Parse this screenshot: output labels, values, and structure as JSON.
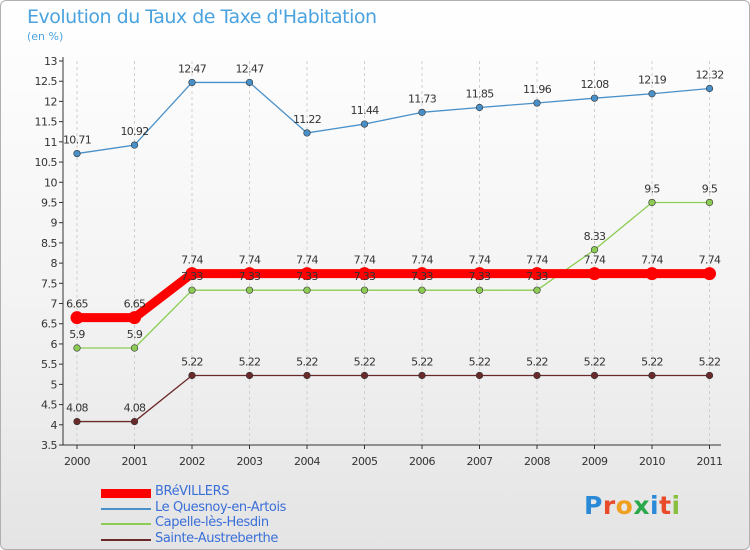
{
  "chart_data": {
    "type": "line",
    "title": "Evolution du Taux de Taxe d'Habitation",
    "subtitle": "(en %)",
    "xlabel": "",
    "ylabel": "",
    "x": [
      "2000",
      "2001",
      "2002",
      "2003",
      "2004",
      "2005",
      "2006",
      "2007",
      "2008",
      "2009",
      "2010",
      "2011"
    ],
    "ylim": [
      3.5,
      13
    ],
    "y_ticks": [
      "3.5",
      "4",
      "4.5",
      "5",
      "5.5",
      "6",
      "6.5",
      "7",
      "7.5",
      "8",
      "8.5",
      "9",
      "9.5",
      "10",
      "10.5",
      "11",
      "11.5",
      "12",
      "12.5",
      "13"
    ],
    "grid": "vertical dashed",
    "legend_position": "bottom-left",
    "series": [
      {
        "name": "BRéVILLERS",
        "color": "#ff0000",
        "values": [
          6.65,
          6.65,
          7.74,
          7.74,
          7.74,
          7.74,
          7.74,
          7.74,
          7.74,
          7.74,
          7.74,
          7.74
        ],
        "labels": [
          "6.65",
          "6.65",
          "7.74",
          "7.74",
          "7.74",
          "7.74",
          "7.74",
          "7.74",
          "7.74",
          "7.74",
          "7.74",
          "7.74"
        ]
      },
      {
        "name": "Le Quesnoy-en-Artois",
        "color": "#4a90c8",
        "values": [
          10.71,
          10.92,
          12.47,
          12.47,
          11.22,
          11.44,
          11.73,
          11.85,
          11.96,
          12.08,
          12.19,
          12.32
        ],
        "labels": [
          "10.71",
          "10.92",
          "12.47",
          "12.47",
          "11.22",
          "11.44",
          "11.73",
          "11.85",
          "11.96",
          "12.08",
          "12.19",
          "12.32"
        ]
      },
      {
        "name": "Capelle-lès-Hesdin",
        "color": "#8ccc55",
        "values": [
          5.9,
          5.9,
          7.33,
          7.33,
          7.33,
          7.33,
          7.33,
          7.33,
          7.33,
          8.33,
          9.5,
          9.5
        ],
        "labels": [
          "5.9",
          "5.9",
          "7.33",
          "7.33",
          "7.33",
          "7.33",
          "7.33",
          "7.33",
          "7.33",
          "8.33",
          "9.5",
          "9.5"
        ]
      },
      {
        "name": "Sainte-Austreberthe",
        "color": "#6b2a2a",
        "values": [
          4.08,
          4.08,
          5.22,
          5.22,
          5.22,
          5.22,
          5.22,
          5.22,
          5.22,
          5.22,
          5.22,
          5.22
        ],
        "labels": [
          "4.08",
          "4.08",
          "5.22",
          "5.22",
          "5.22",
          "5.22",
          "5.22",
          "5.22",
          "5.22",
          "5.22",
          "5.22",
          "5.22"
        ]
      }
    ]
  },
  "logo": {
    "letters": [
      "P",
      "r",
      "o",
      "x",
      "i",
      "t",
      "i"
    ],
    "colors": [
      "#2a8ad8",
      "#e84a2a",
      "#f0a020",
      "#2aa84a",
      "#2a8ad8",
      "#e84a2a",
      "#8ac040"
    ]
  }
}
